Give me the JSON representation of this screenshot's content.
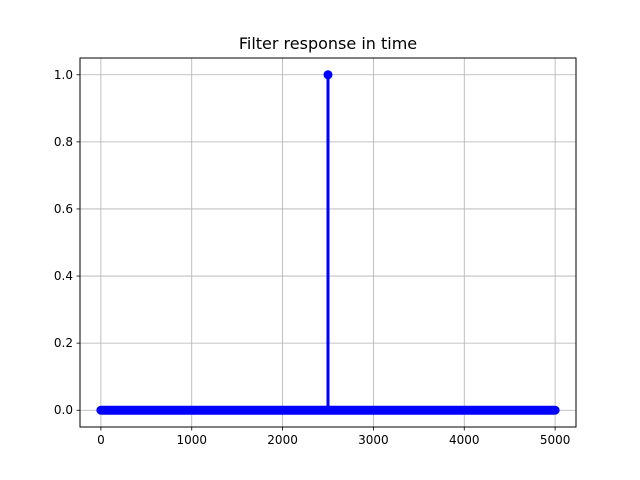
{
  "chart_data": {
    "type": "stem",
    "title": "Filter response in time",
    "xlabel": "",
    "ylabel": "",
    "xlim": [
      -230,
      5230
    ],
    "ylim": [
      -0.05,
      1.05
    ],
    "x_ticks": [
      0,
      1000,
      2000,
      3000,
      4000,
      5000
    ],
    "x_tick_labels": [
      "0",
      "1000",
      "2000",
      "3000",
      "4000",
      "5000"
    ],
    "y_ticks": [
      0.0,
      0.2,
      0.4,
      0.6,
      0.8,
      1.0
    ],
    "y_tick_labels": [
      "0.0",
      "0.2",
      "0.4",
      "0.6",
      "0.8",
      "1.0"
    ],
    "grid": true,
    "series": [
      {
        "x_start": 0,
        "x_end": 5000,
        "baseline": 0.0,
        "impulses": [
          {
            "x": 2500,
            "y": 1.0
          }
        ],
        "color": "#0000ff"
      }
    ]
  }
}
